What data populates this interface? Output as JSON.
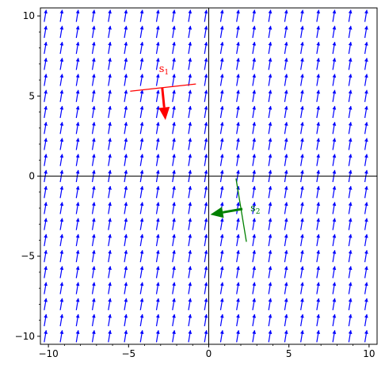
{
  "chart_data": {
    "type": "vector-field",
    "xlim": [
      -10.5,
      10.5
    ],
    "ylim": [
      -10.5,
      10.5
    ],
    "xticks": [
      -10,
      -5,
      0,
      5,
      10
    ],
    "yticks": [
      -10,
      -5,
      0,
      5,
      10
    ],
    "xtick_labels": [
      "−10",
      "−5",
      "0",
      "5",
      "10"
    ],
    "ytick_labels": [
      "−10",
      "−5",
      "0",
      "5",
      "10"
    ],
    "grid": false,
    "axes_through_origin": true,
    "field": {
      "color": "#0000ff",
      "x_start": -10.2,
      "x_step": 1.0,
      "x_count": 21,
      "y_start": -10.0,
      "y_step": 1.0,
      "y_count": 21,
      "direction": [
        0.5,
        3.0
      ],
      "arrow_length": 0.75
    },
    "vectors": [
      {
        "label_main": "s",
        "label_sub": "1",
        "color": "#ff0000",
        "label_pos": [
          -3.1,
          6.5
        ],
        "line": {
          "from": [
            -4.9,
            5.3
          ],
          "to": [
            -0.8,
            5.75
          ]
        },
        "arrow": {
          "from": [
            -2.9,
            5.5
          ],
          "to": [
            -2.7,
            3.5
          ]
        }
      },
      {
        "label_main": "s",
        "label_sub": "2",
        "color": "#008000",
        "label_pos": [
          2.6,
          -2.2
        ],
        "line": {
          "from": [
            1.7,
            -0.15
          ],
          "to": [
            2.35,
            -4.1
          ]
        },
        "arrow": {
          "from": [
            2.1,
            -2.05
          ],
          "to": [
            0.1,
            -2.4
          ]
        }
      }
    ]
  }
}
